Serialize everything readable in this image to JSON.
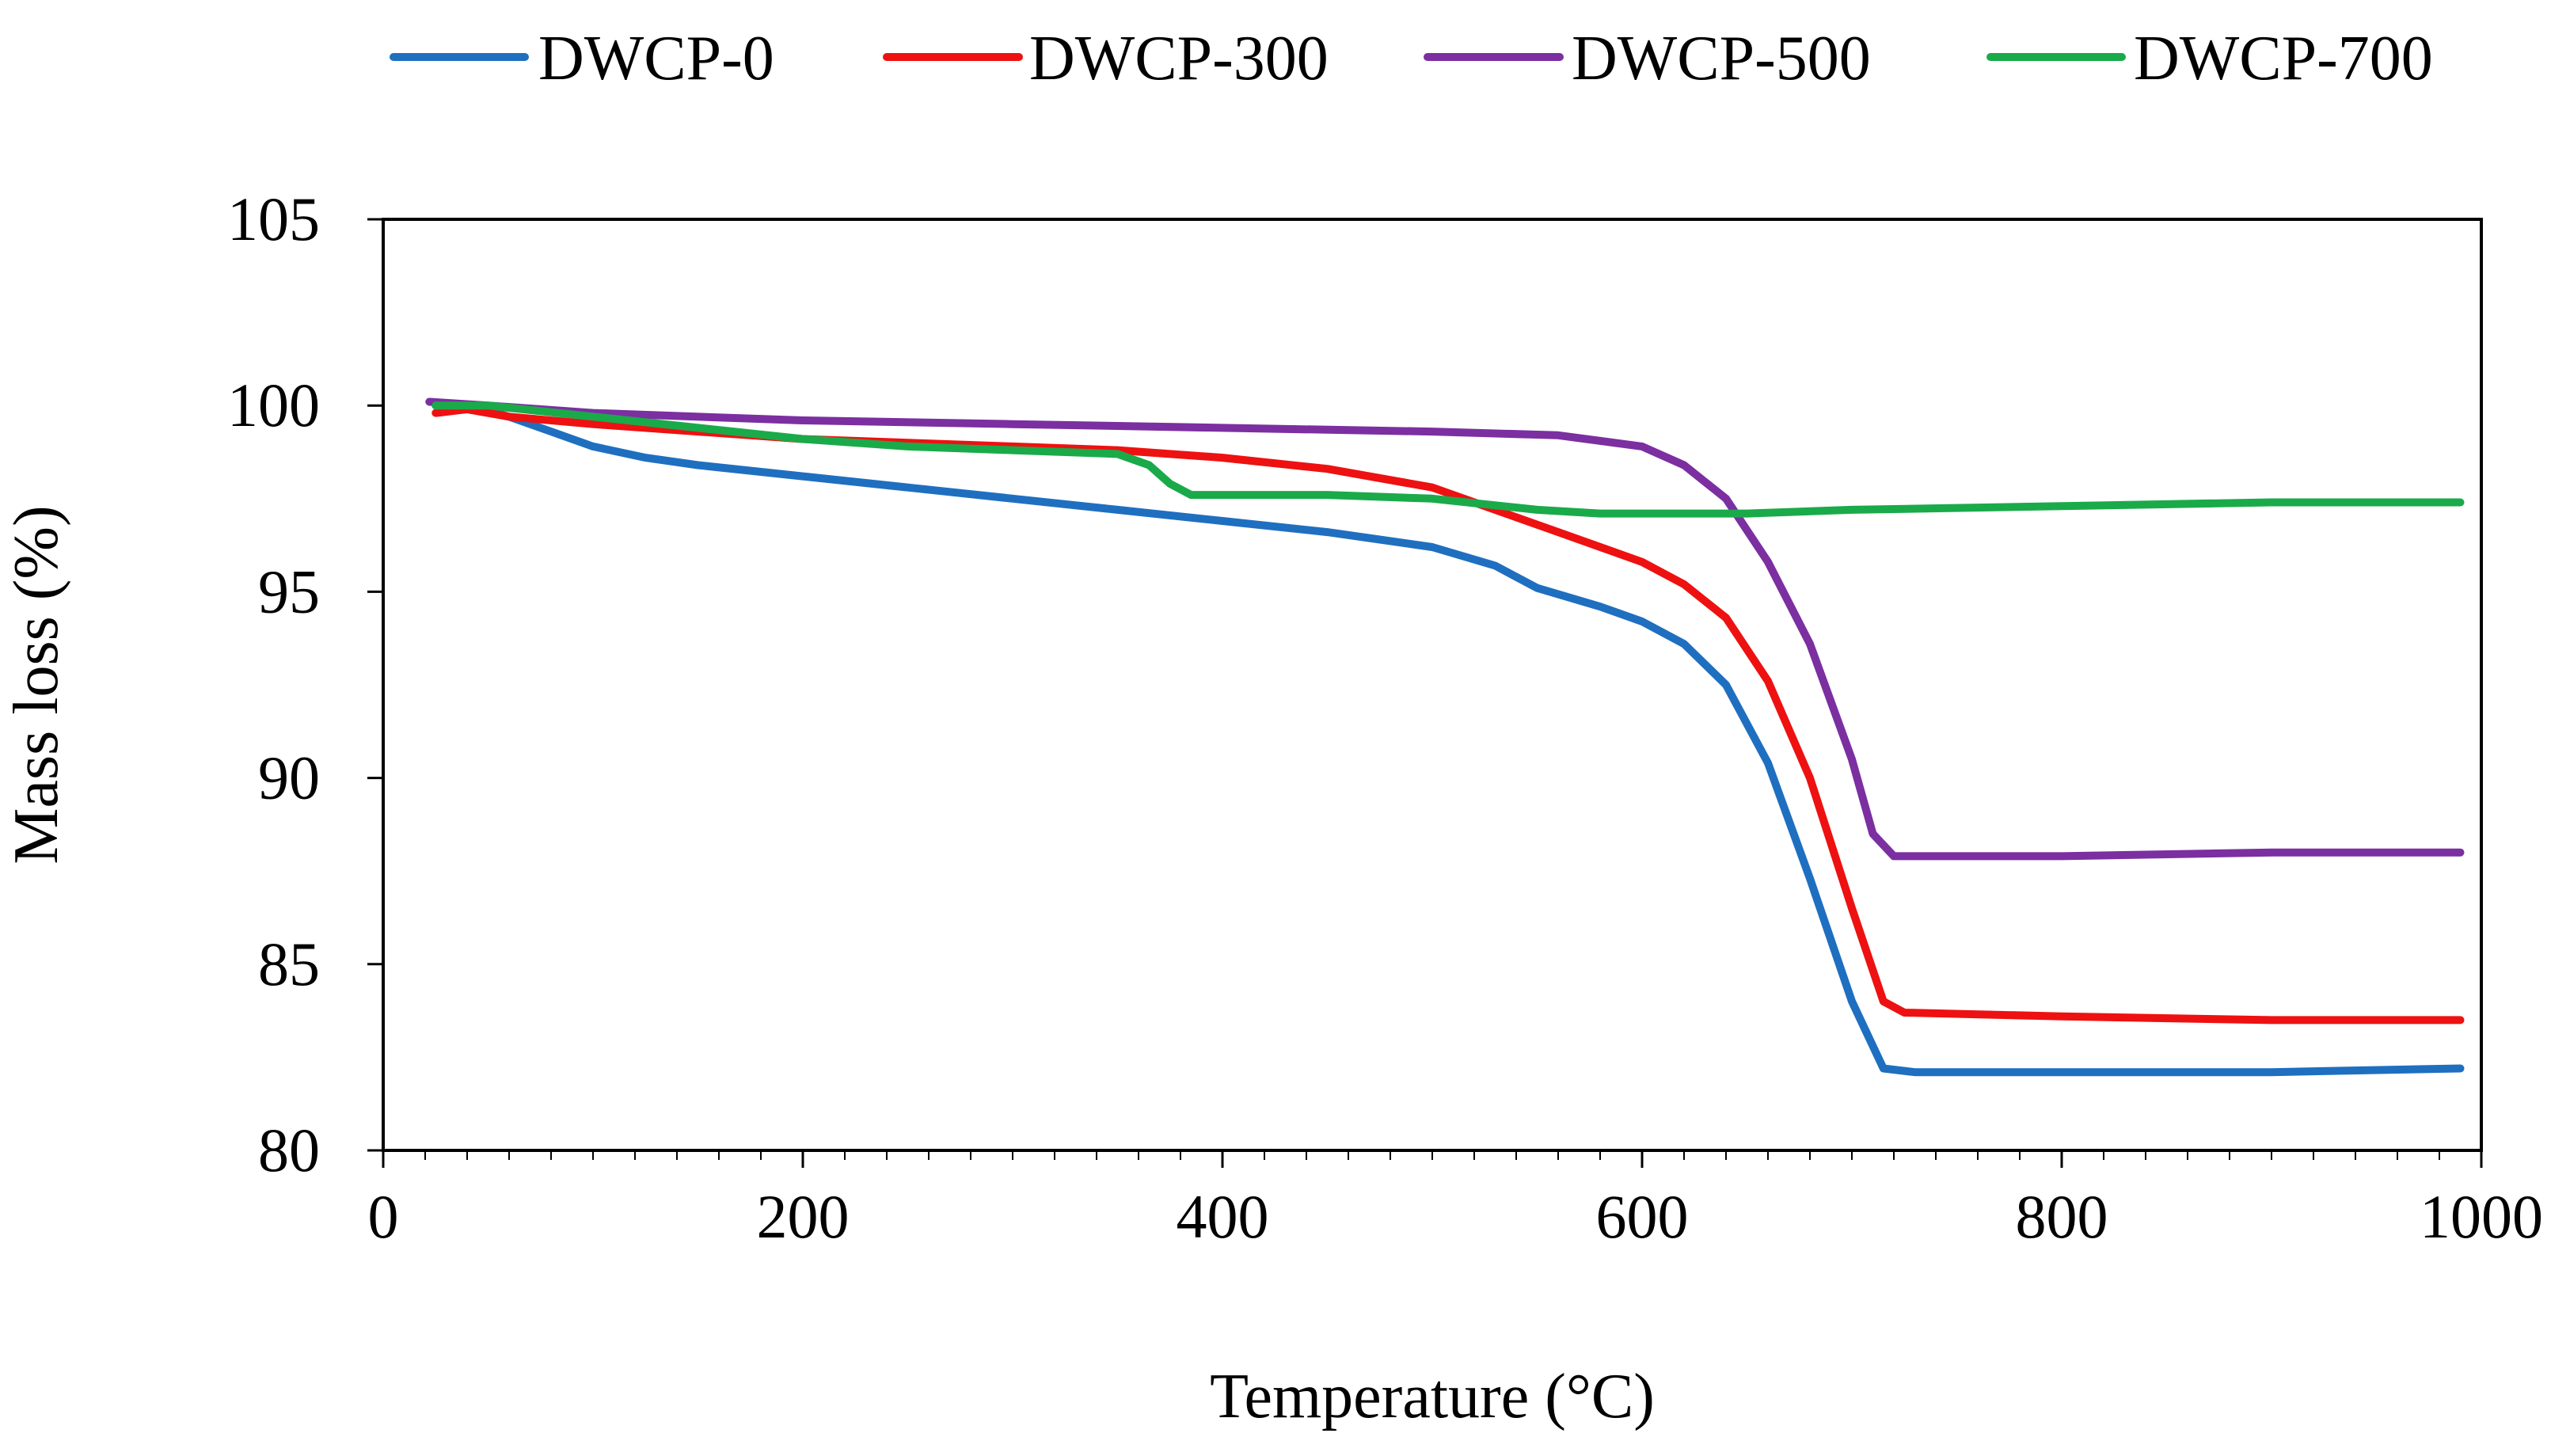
{
  "chart_data": {
    "type": "line",
    "title": "",
    "xlabel": "Temperature (°C)",
    "ylabel": "Mass loss (%)",
    "xlim": [
      0,
      1000
    ],
    "ylim": [
      80,
      105
    ],
    "xticks": [
      0,
      200,
      400,
      600,
      800,
      1000
    ],
    "yticks": [
      80,
      85,
      90,
      95,
      100,
      105
    ],
    "xtick_labels": [
      "0",
      "200",
      "400",
      "600",
      "800",
      "1000"
    ],
    "ytick_labels": [
      "80",
      "85",
      "90",
      "95",
      "100",
      "105"
    ],
    "grid": false,
    "legend_position": "top",
    "series": [
      {
        "name": "DWCP-0",
        "color": "#1f6fc0",
        "x": [
          25,
          40,
          60,
          80,
          100,
          125,
          150,
          200,
          250,
          300,
          350,
          400,
          450,
          500,
          530,
          550,
          580,
          600,
          620,
          640,
          660,
          680,
          700,
          715,
          730,
          800,
          900,
          990
        ],
        "y": [
          100.0,
          100.0,
          99.7,
          99.3,
          98.9,
          98.6,
          98.4,
          98.1,
          97.8,
          97.5,
          97.2,
          96.9,
          96.6,
          96.2,
          95.7,
          95.1,
          94.6,
          94.2,
          93.6,
          92.5,
          90.4,
          87.3,
          84.0,
          82.2,
          82.1,
          82.1,
          82.1,
          82.2
        ]
      },
      {
        "name": "DWCP-300",
        "color": "#ee1111",
        "x": [
          25,
          40,
          60,
          100,
          150,
          200,
          250,
          300,
          350,
          400,
          450,
          500,
          520,
          540,
          560,
          600,
          620,
          640,
          660,
          680,
          700,
          715,
          725,
          800,
          900,
          990
        ],
        "y": [
          99.8,
          99.9,
          99.7,
          99.5,
          99.3,
          99.1,
          99.0,
          98.9,
          98.8,
          98.6,
          98.3,
          97.8,
          97.4,
          97.0,
          96.6,
          95.8,
          95.2,
          94.3,
          92.6,
          90.0,
          86.5,
          84.0,
          83.7,
          83.6,
          83.5,
          83.5
        ]
      },
      {
        "name": "DWCP-500",
        "color": "#7b2fa0",
        "x": [
          22,
          50,
          100,
          200,
          300,
          400,
          500,
          560,
          600,
          620,
          640,
          660,
          680,
          700,
          710,
          720,
          750,
          800,
          900,
          990
        ],
        "y": [
          100.1,
          100.0,
          99.8,
          99.6,
          99.5,
          99.4,
          99.3,
          99.2,
          98.9,
          98.4,
          97.5,
          95.8,
          93.6,
          90.5,
          88.5,
          87.9,
          87.9,
          87.9,
          88.0,
          88.0
        ]
      },
      {
        "name": "DWCP-700",
        "color": "#1aaa4a",
        "x": [
          25,
          50,
          100,
          150,
          200,
          250,
          300,
          350,
          365,
          375,
          385,
          400,
          450,
          500,
          550,
          580,
          600,
          650,
          700,
          800,
          900,
          990
        ],
        "y": [
          100.0,
          100.0,
          99.7,
          99.4,
          99.1,
          98.9,
          98.8,
          98.7,
          98.4,
          97.9,
          97.6,
          97.6,
          97.6,
          97.5,
          97.2,
          97.1,
          97.1,
          97.1,
          97.2,
          97.3,
          97.4,
          97.4
        ]
      }
    ]
  }
}
